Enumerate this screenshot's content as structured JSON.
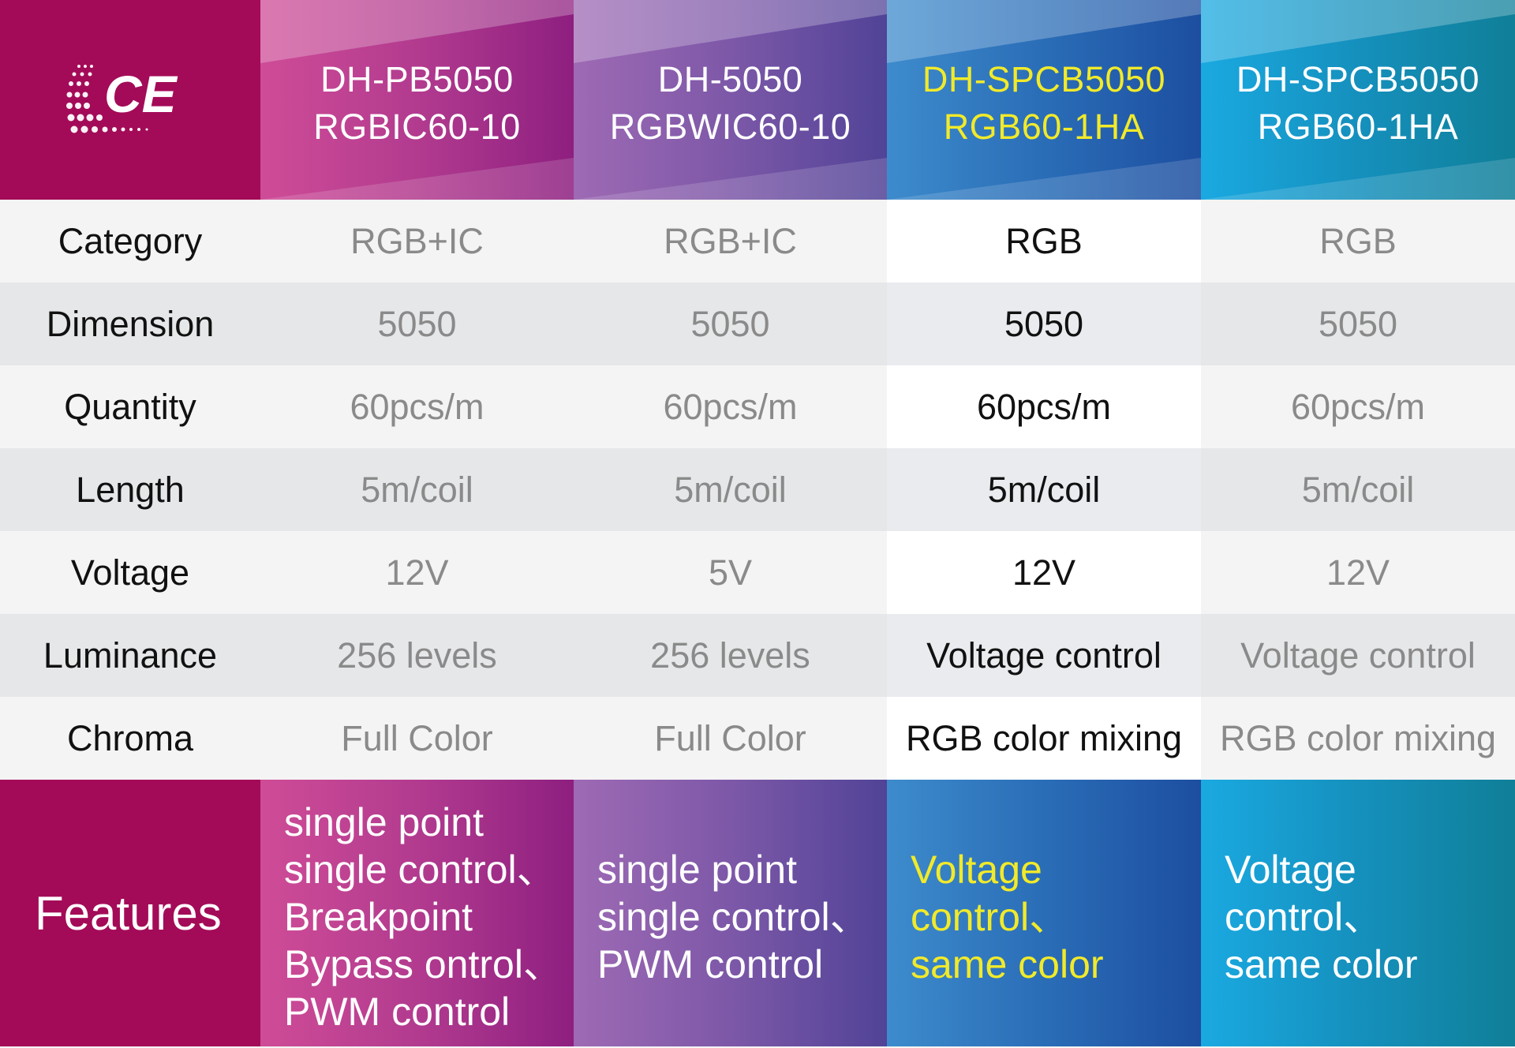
{
  "logo": {
    "text": "CE",
    "icon": "ce-logo"
  },
  "products": [
    {
      "line1": "DH-PB5050",
      "line2": "RGBIC60-10"
    },
    {
      "line1": "DH-5050",
      "line2": "RGBWIC60-10"
    },
    {
      "line1": "DH-SPCB5050",
      "line2": "RGB60-1HA"
    },
    {
      "line1": "DH-SPCB5050",
      "line2": "RGB60-1HA"
    }
  ],
  "rows": [
    {
      "label": "Category",
      "values": [
        "RGB+IC",
        "RGB+IC",
        "RGB",
        "RGB"
      ]
    },
    {
      "label": "Dimension",
      "values": [
        "5050",
        "5050",
        "5050",
        "5050"
      ]
    },
    {
      "label": "Quantity",
      "values": [
        "60pcs/m",
        "60pcs/m",
        "60pcs/m",
        "60pcs/m"
      ]
    },
    {
      "label": "Length",
      "values": [
        "5m/coil",
        "5m/coil",
        "5m/coil",
        "5m/coil"
      ]
    },
    {
      "label": "Voltage",
      "values": [
        "12V",
        "5V",
        "12V",
        "12V"
      ]
    },
    {
      "label": "Luminance",
      "values": [
        "256 levels",
        "256 levels",
        "Voltage control",
        "Voltage control"
      ]
    },
    {
      "label": "Chroma",
      "values": [
        "Full Color",
        "Full Color",
        "RGB color mixing",
        "RGB color mixing"
      ]
    }
  ],
  "features": {
    "label": "Features",
    "items": [
      [
        "single point",
        "single control、",
        "Breakpoint",
        "Bypass ontrol、",
        "PWM control"
      ],
      [
        "single point",
        "single control、",
        "PWM control"
      ],
      [
        "Voltage",
        "control、",
        "same color"
      ],
      [
        "Voltage",
        "control、",
        "same color"
      ]
    ]
  },
  "colors": {
    "brand": "#a30b58",
    "highlight_text": "#f1ea2a",
    "col1": [
      "#cf4c97",
      "#8e1f80"
    ],
    "col2": [
      "#9e6ab4",
      "#514397"
    ],
    "col3": [
      "#3d8bcc",
      "#1d4ea0"
    ],
    "col4": [
      "#1aa9e1",
      "#107f98"
    ]
  }
}
